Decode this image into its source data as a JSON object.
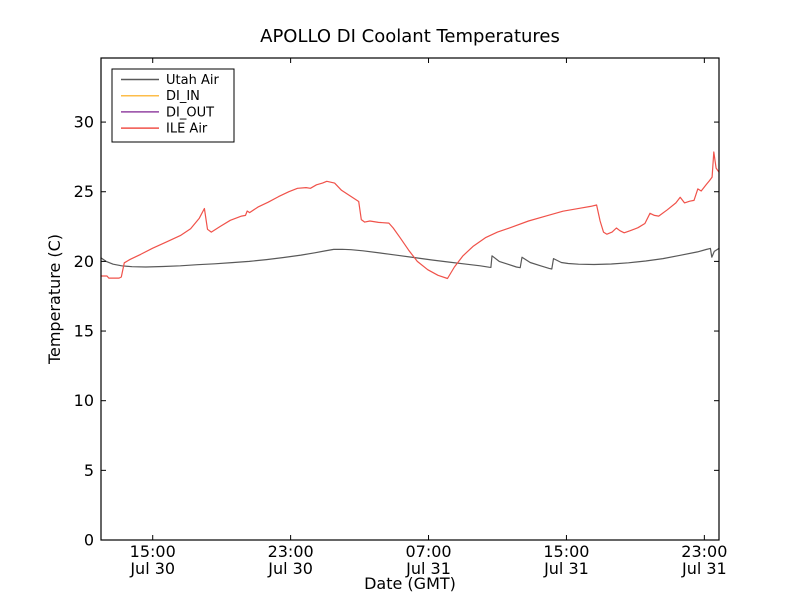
{
  "chart_data": {
    "type": "line",
    "title": "APOLLO DI Coolant Temperatures",
    "xlabel": "Date (GMT)",
    "ylabel": "Temperature (C)",
    "x_unit": "hours after Jul 30 12:00 GMT",
    "xlim": [
      0,
      35.85
    ],
    "ylim": [
      0,
      34.6
    ],
    "grid": false,
    "legend_position": "upper-left",
    "frame_color": "#000000",
    "background_color": "#ffffff",
    "x_ticks": [
      {
        "t": 3,
        "time": "15:00",
        "date": "Jul 30"
      },
      {
        "t": 11,
        "time": "23:00",
        "date": "Jul 30"
      },
      {
        "t": 19,
        "time": "07:00",
        "date": "Jul 31"
      },
      {
        "t": 27,
        "time": "15:00",
        "date": "Jul 31"
      },
      {
        "t": 35,
        "time": "23:00",
        "date": "Jul 31"
      }
    ],
    "y_ticks": [
      0,
      5,
      10,
      15,
      20,
      25,
      30
    ],
    "series": [
      {
        "name": "Utah Air",
        "color": "#595959",
        "points": [
          [
            0,
            20.25
          ],
          [
            0.3,
            20.0
          ],
          [
            0.7,
            19.8
          ],
          [
            1.2,
            19.68
          ],
          [
            1.8,
            19.62
          ],
          [
            2.6,
            19.6
          ],
          [
            3.6,
            19.63
          ],
          [
            4.6,
            19.68
          ],
          [
            5.6,
            19.76
          ],
          [
            6.6,
            19.83
          ],
          [
            7.6,
            19.91
          ],
          [
            8.6,
            20.0
          ],
          [
            9.6,
            20.13
          ],
          [
            10.6,
            20.28
          ],
          [
            11.6,
            20.45
          ],
          [
            12.4,
            20.62
          ],
          [
            13.0,
            20.75
          ],
          [
            13.5,
            20.86
          ],
          [
            14.0,
            20.87
          ],
          [
            14.5,
            20.84
          ],
          [
            15.2,
            20.76
          ],
          [
            16.2,
            20.6
          ],
          [
            17.2,
            20.44
          ],
          [
            18.2,
            20.27
          ],
          [
            19.2,
            20.1
          ],
          [
            20.2,
            19.95
          ],
          [
            21.2,
            19.8
          ],
          [
            22.0,
            19.68
          ],
          [
            22.5,
            19.58
          ],
          [
            22.62,
            19.57
          ],
          [
            22.68,
            20.4
          ],
          [
            23.1,
            20.0
          ],
          [
            23.6,
            19.8
          ],
          [
            24.1,
            19.6
          ],
          [
            24.32,
            19.55
          ],
          [
            24.42,
            20.3
          ],
          [
            24.9,
            19.92
          ],
          [
            25.5,
            19.68
          ],
          [
            26.0,
            19.5
          ],
          [
            26.15,
            19.45
          ],
          [
            26.25,
            20.2
          ],
          [
            26.7,
            19.92
          ],
          [
            27.1,
            19.85
          ],
          [
            27.7,
            19.8
          ],
          [
            28.6,
            19.78
          ],
          [
            29.6,
            19.81
          ],
          [
            30.6,
            19.9
          ],
          [
            31.6,
            20.03
          ],
          [
            32.6,
            20.2
          ],
          [
            33.6,
            20.44
          ],
          [
            34.6,
            20.68
          ],
          [
            35.1,
            20.85
          ],
          [
            35.35,
            20.93
          ],
          [
            35.43,
            20.3
          ],
          [
            35.58,
            20.72
          ],
          [
            35.85,
            20.93
          ]
        ]
      },
      {
        "name": "DI_IN",
        "color": "#fdbd4a",
        "points": []
      },
      {
        "name": "DI_OUT",
        "color": "#9344a2",
        "points": []
      },
      {
        "name": "ILE Air",
        "color": "#f0524a",
        "points": [
          [
            0,
            18.95
          ],
          [
            0.35,
            18.95
          ],
          [
            0.45,
            18.8
          ],
          [
            1.05,
            18.8
          ],
          [
            1.18,
            18.88
          ],
          [
            1.35,
            19.9
          ],
          [
            1.7,
            20.15
          ],
          [
            2.3,
            20.5
          ],
          [
            3.0,
            20.95
          ],
          [
            3.8,
            21.4
          ],
          [
            4.6,
            21.85
          ],
          [
            5.2,
            22.35
          ],
          [
            5.7,
            23.1
          ],
          [
            6.0,
            23.8
          ],
          [
            6.18,
            22.3
          ],
          [
            6.4,
            22.1
          ],
          [
            6.9,
            22.5
          ],
          [
            7.5,
            22.95
          ],
          [
            8.15,
            23.25
          ],
          [
            8.38,
            23.3
          ],
          [
            8.48,
            23.62
          ],
          [
            8.62,
            23.5
          ],
          [
            9.1,
            23.9
          ],
          [
            9.7,
            24.25
          ],
          [
            10.3,
            24.65
          ],
          [
            10.9,
            25.0
          ],
          [
            11.4,
            25.25
          ],
          [
            11.9,
            25.3
          ],
          [
            12.15,
            25.25
          ],
          [
            12.5,
            25.5
          ],
          [
            12.85,
            25.62
          ],
          [
            13.1,
            25.75
          ],
          [
            13.55,
            25.62
          ],
          [
            13.95,
            25.1
          ],
          [
            14.45,
            24.7
          ],
          [
            14.95,
            24.3
          ],
          [
            15.1,
            23.0
          ],
          [
            15.3,
            22.82
          ],
          [
            15.6,
            22.9
          ],
          [
            16.1,
            22.8
          ],
          [
            16.7,
            22.75
          ],
          [
            16.95,
            22.4
          ],
          [
            17.35,
            21.7
          ],
          [
            17.85,
            20.8
          ],
          [
            18.35,
            20.0
          ],
          [
            18.95,
            19.4
          ],
          [
            19.55,
            19.0
          ],
          [
            20.1,
            18.77
          ],
          [
            20.5,
            19.6
          ],
          [
            21.0,
            20.4
          ],
          [
            21.6,
            21.1
          ],
          [
            22.3,
            21.7
          ],
          [
            23.0,
            22.1
          ],
          [
            23.8,
            22.45
          ],
          [
            24.8,
            22.9
          ],
          [
            25.8,
            23.25
          ],
          [
            26.8,
            23.6
          ],
          [
            27.8,
            23.82
          ],
          [
            28.4,
            23.95
          ],
          [
            28.75,
            24.05
          ],
          [
            28.95,
            22.9
          ],
          [
            29.15,
            22.1
          ],
          [
            29.35,
            21.95
          ],
          [
            29.65,
            22.1
          ],
          [
            29.9,
            22.4
          ],
          [
            30.1,
            22.2
          ],
          [
            30.35,
            22.05
          ],
          [
            30.7,
            22.2
          ],
          [
            31.15,
            22.42
          ],
          [
            31.55,
            22.72
          ],
          [
            31.85,
            23.45
          ],
          [
            32.1,
            23.3
          ],
          [
            32.35,
            23.25
          ],
          [
            32.85,
            23.7
          ],
          [
            33.35,
            24.2
          ],
          [
            33.6,
            24.6
          ],
          [
            33.85,
            24.2
          ],
          [
            34.15,
            24.32
          ],
          [
            34.4,
            24.38
          ],
          [
            34.62,
            25.2
          ],
          [
            34.82,
            25.05
          ],
          [
            35.1,
            25.5
          ],
          [
            35.3,
            25.8
          ],
          [
            35.45,
            26.05
          ],
          [
            35.55,
            27.85
          ],
          [
            35.68,
            26.7
          ],
          [
            35.85,
            26.4
          ]
        ]
      }
    ]
  }
}
